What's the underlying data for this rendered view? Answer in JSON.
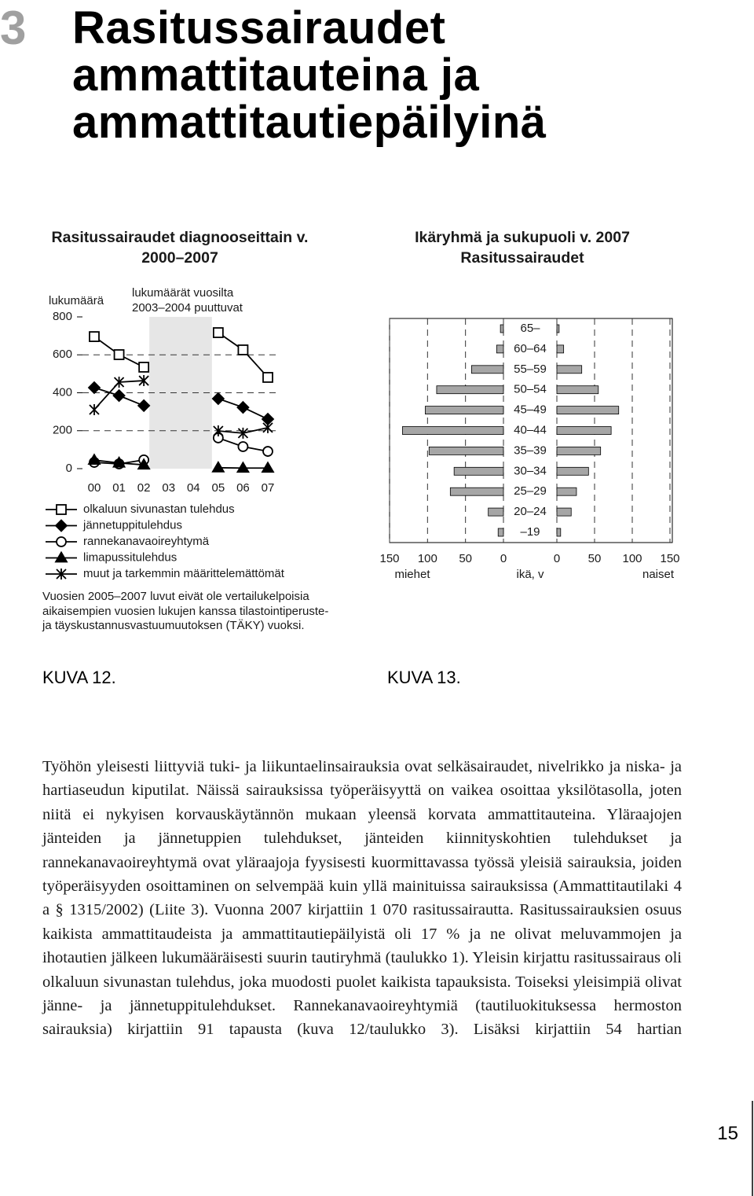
{
  "chapter_number": "3",
  "title": "Rasitussairaudet ammattitauteina ja ammattitautiepäilyinä",
  "chart_data": [
    {
      "type": "line",
      "title": "Rasitussairaudet diagnooseittain v. 2000–2007",
      "y_label": "lukumäärä",
      "annotation": "lukumäärät vuosilta 2003–2004 puuttuvat",
      "note": "Vuosien 2005–2007 luvut eivät ole vertailukelpoisia aikaisempien vuosien lukujen kanssa tilastointiperuste- ja täyskustannusvastuumuutoksen (TÄKY) vuoksi.",
      "categories": [
        "00",
        "01",
        "02",
        "03",
        "04",
        "05",
        "06",
        "07"
      ],
      "ylim": [
        0,
        800
      ],
      "yticks": [
        0,
        200,
        400,
        600,
        800
      ],
      "grid": true,
      "series": [
        {
          "name": "olkaluun sivunastan tulehdus",
          "marker": "square",
          "color": "#000000",
          "values": [
            696,
            601,
            535,
            null,
            null,
            717,
            626,
            481
          ]
        },
        {
          "name": "jännetuppitulehdus",
          "marker": "diamond",
          "color": "#000000",
          "values": [
            427,
            385,
            332,
            null,
            null,
            369,
            323,
            261
          ]
        },
        {
          "name": "rannekanavaoireyhtymä",
          "marker": "circle",
          "color": "#000000",
          "values": [
            33,
            25,
            46,
            null,
            null,
            162,
            116,
            91
          ]
        },
        {
          "name": "limapussitulehdus",
          "marker": "triangle",
          "color": "#000000",
          "values": [
            45,
            30,
            20,
            null,
            null,
            5,
            3,
            3
          ]
        },
        {
          "name": "muut ja tarkemmin määrittelemättömät",
          "marker": "asterisk",
          "color": "#000000",
          "values": [
            311,
            456,
            464,
            null,
            null,
            199,
            187,
            216
          ]
        }
      ]
    },
    {
      "type": "pyramid",
      "title": "Ikäryhmä ja sukupuoli v. 2007",
      "subtitle": "Rasitussairaudet",
      "category_label": "ikä, v",
      "categories": [
        "65–",
        "60–64",
        "55–59",
        "50–54",
        "45–49",
        "40–44",
        "35–39",
        "30–34",
        "25–29",
        "20–24",
        "–19"
      ],
      "xlim": [
        0,
        150
      ],
      "xticks": [
        0,
        50,
        100,
        150
      ],
      "grid": true,
      "series": [
        {
          "name": "miehet",
          "color": "#a6a6a6",
          "values": [
            4,
            9,
            42,
            88,
            103,
            133,
            98,
            65,
            70,
            20,
            7
          ]
        },
        {
          "name": "naiset",
          "color": "#a6a6a6",
          "values": [
            3,
            9,
            33,
            55,
            82,
            72,
            58,
            42,
            26,
            19,
            5
          ]
        }
      ]
    }
  ],
  "captions": [
    "KUVA 12.",
    "KUVA 13."
  ],
  "body": "Työhön yleisesti liittyviä tuki- ja liikuntaelinsairauksia ovat selkäsairaudet, nivelrikko ja niska- ja hartiaseudun kiputilat. Näissä sairauksissa työperäisyyttä on vaikea osoittaa yksilötasolla, joten niitä ei nykyisen korvauskäytännön mukaan yleensä korvata ammattitauteina. Yläraajojen jänteiden ja jännetuppien tulehdukset, jänteiden kiinnityskohtien tulehdukset ja rannekanavaoireyhtymä ovat yläraajoja fyysisesti kuormittavassa työssä yleisiä sairauksia, joiden työperäisyyden osoittaminen on selvempää kuin yllä mainituissa sairauksissa (Ammattitautilaki 4 a § 1315/2002) (Liite 3). Vuonna 2007 kirjattiin 1 070 rasitussairautta. Rasitussairauksien osuus kaikista ammattitaudeista ja ammattitautiepäilyistä oli 17 % ja ne olivat meluvammojen ja ihotautien jälkeen lukumääräisesti suurin tautiryhmä (taulukko 1). Yleisin kirjattu rasitussairaus oli olkaluun sivunastan tulehdus, joka muodosti puolet kaikista tapauksista. Toiseksi yleisimpiä olivat jänne- ja jännetuppitulehdukset. Rannekanavaoireyhtymiä (tautiluokituksessa hermoston sairauksia) kirjattiin 91 tapausta (kuva 12/taulukko 3). Lisäksi kirjattiin 54 hartian",
  "page_number": "15"
}
